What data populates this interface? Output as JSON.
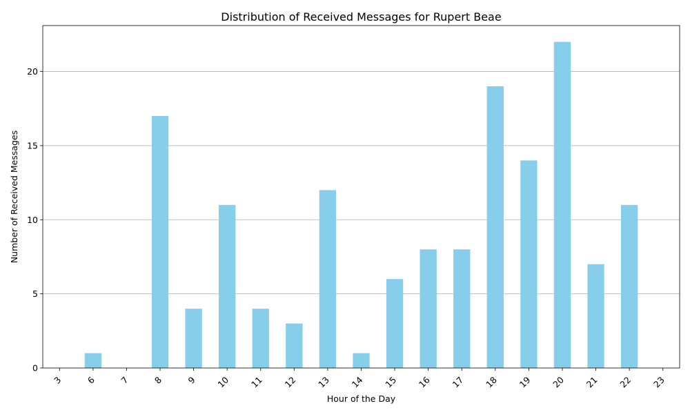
{
  "chart_data": {
    "type": "bar",
    "title": "Distribution of Received Messages for Rupert Beae",
    "xlabel": "Hour of the Day",
    "ylabel": "Number of Received Messages",
    "categories": [
      "3",
      "6",
      "7",
      "8",
      "9",
      "10",
      "11",
      "12",
      "13",
      "14",
      "15",
      "16",
      "17",
      "18",
      "19",
      "20",
      "21",
      "22",
      "23"
    ],
    "values": [
      0,
      1,
      0,
      17,
      4,
      11,
      4,
      3,
      12,
      1,
      6,
      8,
      8,
      19,
      14,
      22,
      7,
      11,
      0
    ],
    "ylim": [
      0,
      23.1
    ],
    "yticks": [
      0,
      5,
      10,
      15,
      20
    ],
    "grid": "y-axis",
    "legend": "none",
    "xtick_rotation": 45,
    "bar_color": "#87ceeb",
    "grid_color": "#b0b0b0",
    "axis_color": "#000000"
  }
}
